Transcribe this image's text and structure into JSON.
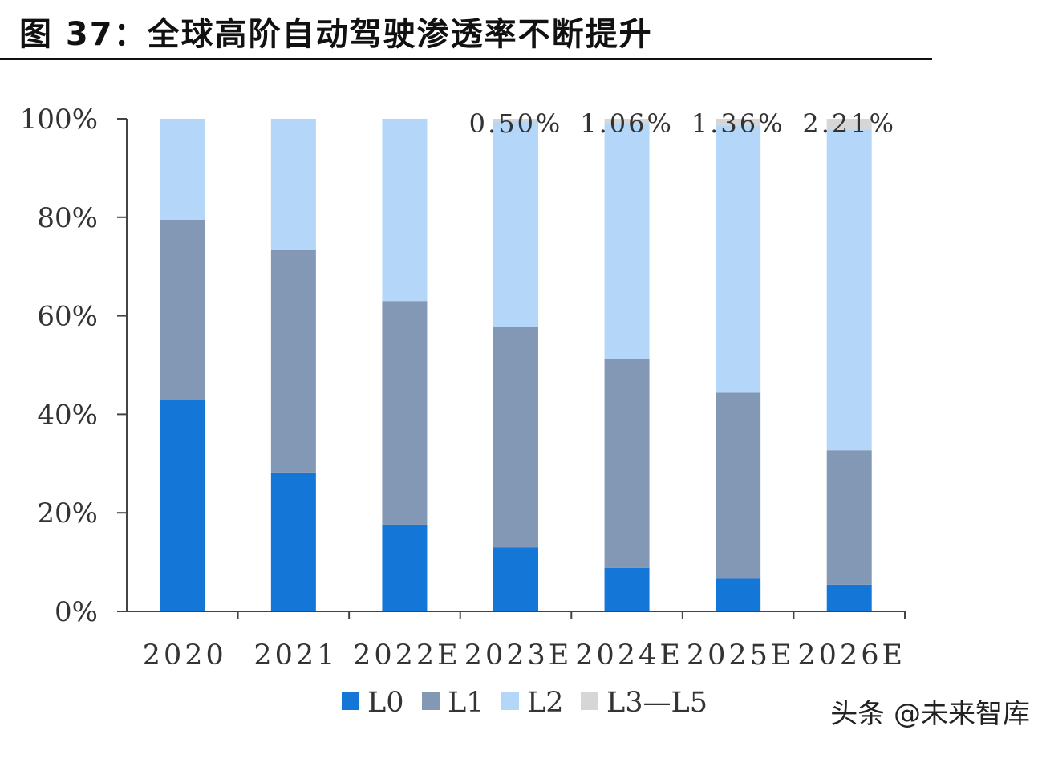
{
  "title": "图 37：全球高阶自动驾驶渗透率不断提升",
  "watermark": "头条 @未来智库",
  "chart_data": {
    "type": "bar",
    "stacked": true,
    "categories": [
      "2020",
      "2021",
      "2022E",
      "2023E",
      "2024E",
      "2025E",
      "2026E"
    ],
    "series": [
      {
        "name": "L0",
        "color": "#1477d8",
        "values": [
          43.0,
          28.2,
          17.6,
          13.0,
          8.8,
          6.6,
          5.4
        ]
      },
      {
        "name": "L1",
        "color": "#8298b4",
        "values": [
          36.5,
          45.1,
          45.4,
          44.7,
          42.5,
          37.8,
          27.3
        ]
      },
      {
        "name": "L2",
        "color": "#b4d6f8",
        "values": [
          20.5,
          26.7,
          37.0,
          41.8,
          47.64,
          54.24,
          65.09
        ]
      },
      {
        "name": "L3-L5",
        "color": "#d6d6d6",
        "values": [
          0,
          0,
          0,
          0.5,
          1.06,
          1.36,
          2.21
        ]
      }
    ],
    "data_labels": [
      {
        "category": "2023E",
        "series": "L3-L5",
        "text": "0.50%"
      },
      {
        "category": "2024E",
        "series": "L3-L5",
        "text": "1.06%"
      },
      {
        "category": "2025E",
        "series": "L3-L5",
        "text": "1.36%"
      },
      {
        "category": "2026E",
        "series": "L3-L5",
        "text": "2.21%"
      }
    ],
    "ylim": [
      0,
      100
    ],
    "yticks": [
      "0%",
      "20%",
      "40%",
      "60%",
      "80%",
      "100%"
    ],
    "legend_labels": [
      "L0",
      "L1",
      "L2",
      "L3—L5"
    ],
    "legend_position": "bottom",
    "grid": false
  }
}
